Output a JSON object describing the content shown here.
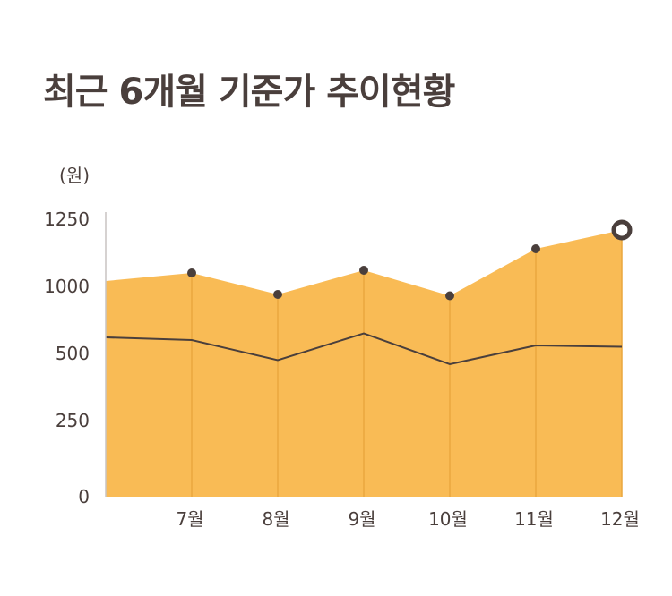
{
  "title": "최근 6개월 기준가 추이현황",
  "unit_label": "(원)",
  "colors": {
    "area": "#f9bb55",
    "gridline": "#eaa73e",
    "line": "#4a3f3c",
    "text": "#4a3f3c",
    "axis": "#c9c4c2"
  },
  "chart_data": {
    "type": "area",
    "title": "최근 6개월 기준가 추이현황",
    "ylabel": "(원)",
    "xlabel": "",
    "y_ticks": [
      0,
      250,
      500,
      1000,
      1250
    ],
    "categories": [
      "",
      "7월",
      "8월",
      "9월",
      "10월",
      "11월",
      "12월"
    ],
    "series": [
      {
        "values": [
          1020,
          1050,
          940,
          1060,
          930,
          1140,
          1210
        ],
        "style": "filled-area",
        "markers": [
          false,
          true,
          true,
          true,
          true,
          true,
          "ring"
        ]
      },
      {
        "values": [
          620,
          600,
          475,
          650,
          460,
          560,
          550
        ],
        "style": "line"
      }
    ],
    "grid": "vertical",
    "legend": "none"
  }
}
